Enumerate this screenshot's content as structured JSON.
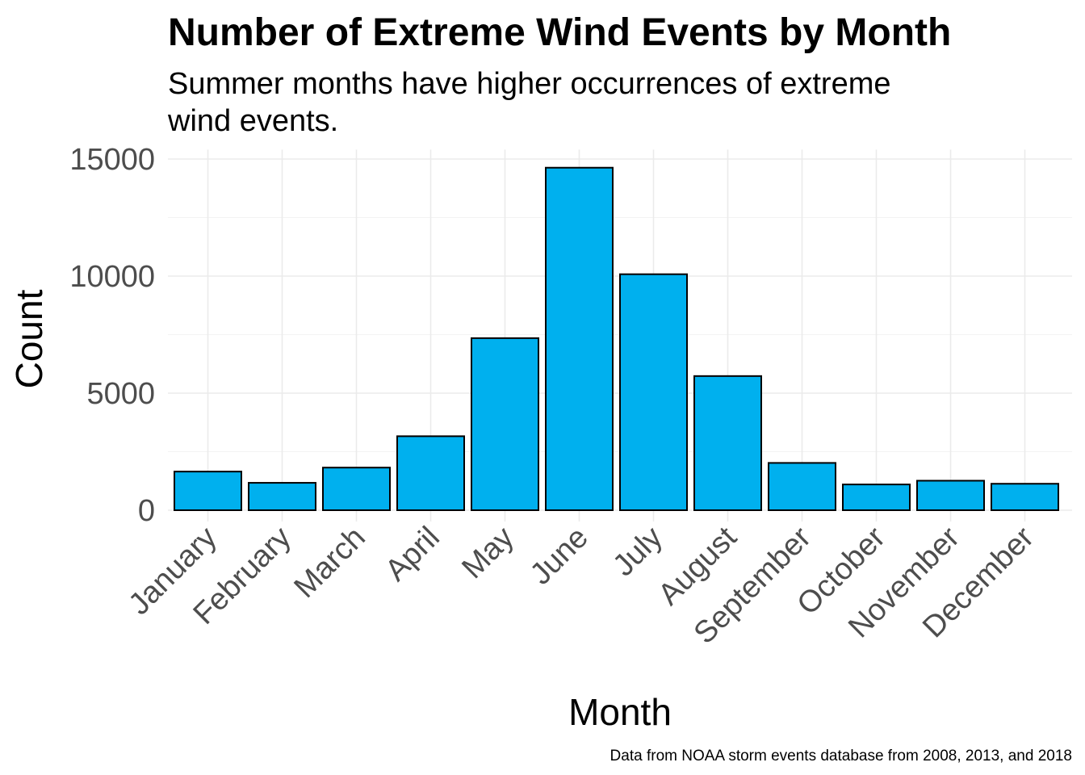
{
  "chart_data": {
    "type": "bar",
    "title": "Number of Extreme Wind Events by Month",
    "subtitle_lines": [
      "Summer months have higher occurrences of extreme",
      "wind events."
    ],
    "xlabel": "Month",
    "ylabel": "Count",
    "caption": "Data from NOAA storm events database from 2008, 2013, and 2018",
    "categories": [
      "January",
      "February",
      "March",
      "April",
      "May",
      "June",
      "July",
      "August",
      "September",
      "October",
      "November",
      "December"
    ],
    "values": [
      1650,
      1170,
      1820,
      3160,
      7350,
      14630,
      10080,
      5730,
      2020,
      1100,
      1260,
      1130
    ],
    "ylim": [
      0,
      15400
    ],
    "yticks": [
      0,
      5000,
      10000,
      15000
    ],
    "ytick_labels": [
      "0",
      "5000",
      "10000",
      "15000"
    ],
    "grid": true,
    "legend": "none",
    "colors": {
      "bar_fill": "#00b0ee",
      "bar_stroke": "#000000",
      "grid": "#ebebeb"
    }
  }
}
